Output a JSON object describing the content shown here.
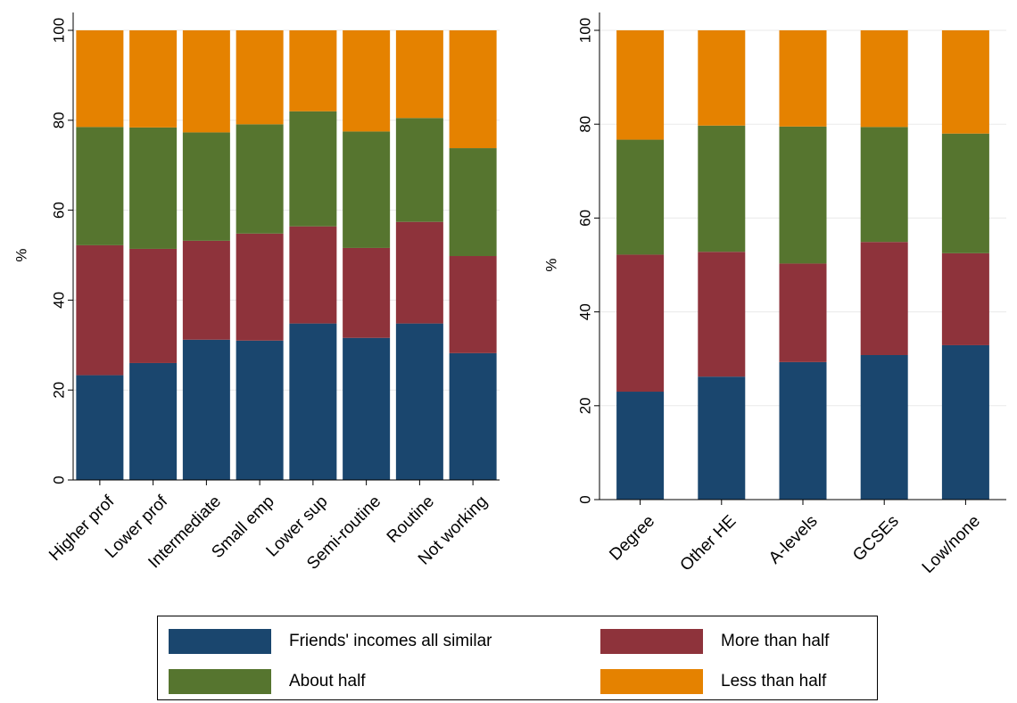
{
  "colors": {
    "friends_incomes_all_similar": "#1a466e",
    "more_than_half": "#8e333b",
    "about_half": "#56752f",
    "less_than_half": "#e58200",
    "gridline": "#eaeaea"
  },
  "chart_data": [
    {
      "type": "bar",
      "stacked": true,
      "ylabel": "%",
      "ylim": [
        0,
        100
      ],
      "yticks": [
        "0",
        "20",
        "40",
        "60",
        "80",
        "100"
      ],
      "grid": true,
      "categories": [
        "Higher prof",
        "Lower prof",
        "Intermediate",
        "Small emp",
        "Lower sup",
        "Semi-routine",
        "Routine",
        "Not working"
      ],
      "series": [
        {
          "name": "Friends' incomes all similar",
          "values": [
            23.3,
            26.0,
            31.2,
            31.0,
            34.8,
            31.6,
            34.8,
            28.2
          ]
        },
        {
          "name": "More than half",
          "values": [
            28.9,
            25.4,
            22.0,
            23.8,
            21.6,
            20.0,
            22.6,
            21.6
          ]
        },
        {
          "name": "About half",
          "values": [
            26.3,
            27.0,
            24.1,
            24.3,
            25.6,
            25.9,
            23.1,
            24.0
          ]
        },
        {
          "name": "Less than half",
          "values": [
            21.5,
            21.6,
            22.7,
            20.9,
            18.0,
            22.5,
            19.5,
            26.2
          ]
        }
      ]
    },
    {
      "type": "bar",
      "stacked": true,
      "ylabel": "%",
      "ylim": [
        0,
        100
      ],
      "yticks": [
        "0",
        "20",
        "40",
        "60",
        "80",
        "100"
      ],
      "grid": true,
      "categories": [
        "Degree",
        "Other HE",
        "A-levels",
        "GCSEs",
        "Low/none"
      ],
      "series": [
        {
          "name": "Friends' incomes all similar",
          "values": [
            23.0,
            26.2,
            29.3,
            30.8,
            32.9
          ]
        },
        {
          "name": "More than half",
          "values": [
            29.2,
            26.6,
            21.0,
            24.1,
            19.6
          ]
        },
        {
          "name": "About half",
          "values": [
            24.5,
            26.9,
            29.2,
            24.5,
            25.5
          ]
        },
        {
          "name": "Less than half",
          "values": [
            23.3,
            20.3,
            20.5,
            20.6,
            22.0
          ]
        }
      ]
    }
  ],
  "legend": {
    "placement": "bottom",
    "items": [
      {
        "label": "Friends' incomes all similar",
        "color": "#1a466e"
      },
      {
        "label": "More than half",
        "color": "#8e333b"
      },
      {
        "label": "About half",
        "color": "#56752f"
      },
      {
        "label": "Less than half",
        "color": "#e58200"
      }
    ]
  }
}
